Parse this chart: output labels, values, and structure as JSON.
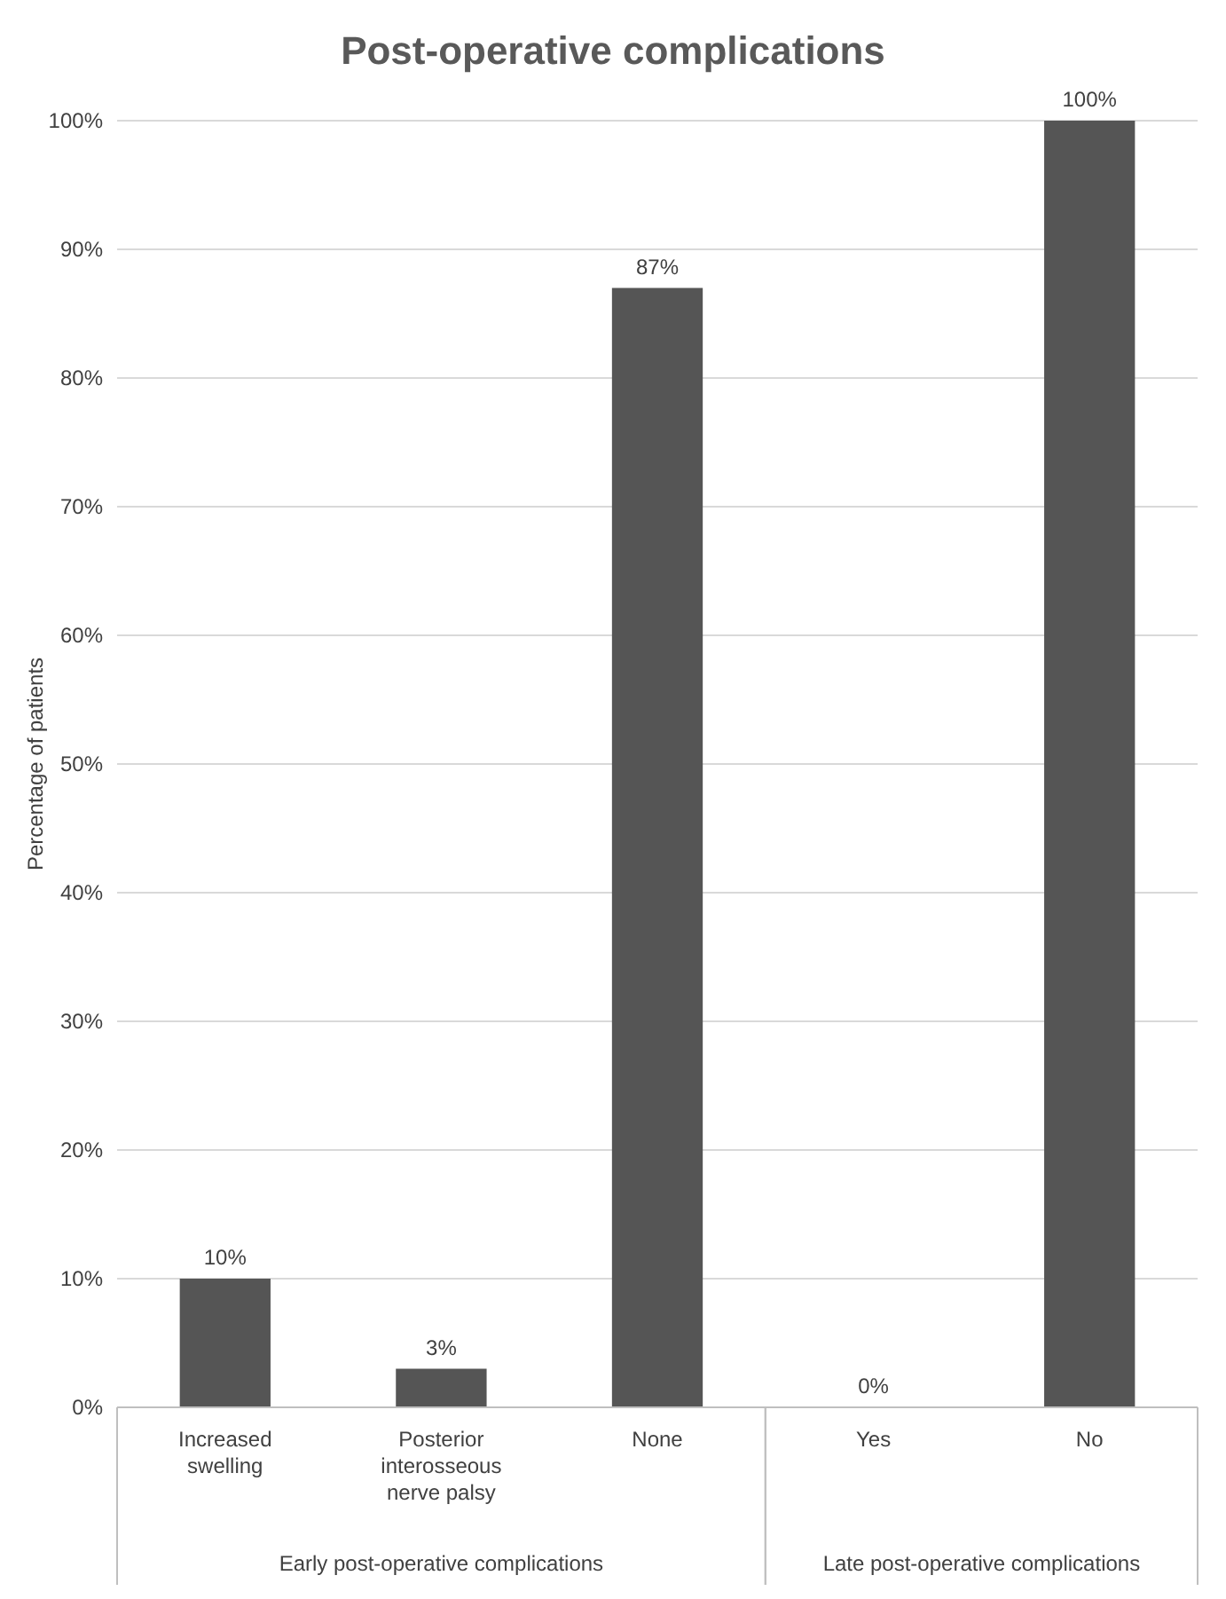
{
  "chart_data": {
    "type": "bar",
    "title": "Post-operative complications",
    "ylabel": "Percentage of patients",
    "categories": [
      "Increased swelling",
      "Posterior interosseous nerve palsy",
      "None",
      "Yes",
      "No"
    ],
    "values": [
      10,
      3,
      87,
      0,
      100
    ],
    "color": "#555555",
    "value_labels": [
      "10%",
      "3%",
      "87%",
      "0%",
      "100%"
    ],
    "ylim": [
      0,
      100
    ],
    "yticks": [
      {
        "value": 0,
        "label": "0%"
      },
      {
        "value": 10,
        "label": "10%"
      },
      {
        "value": 20,
        "label": "20%"
      },
      {
        "value": 30,
        "label": "30%"
      },
      {
        "value": 40,
        "label": "40%"
      },
      {
        "value": 50,
        "label": "50%"
      },
      {
        "value": 60,
        "label": "60%"
      },
      {
        "value": 70,
        "label": "70%"
      },
      {
        "value": 80,
        "label": "80%"
      },
      {
        "value": 90,
        "label": "90%"
      },
      {
        "value": 100,
        "label": "100%"
      }
    ],
    "grid": "y",
    "annotations": [
      "Early post-operative complications",
      "Late post-operative complications"
    ]
  }
}
